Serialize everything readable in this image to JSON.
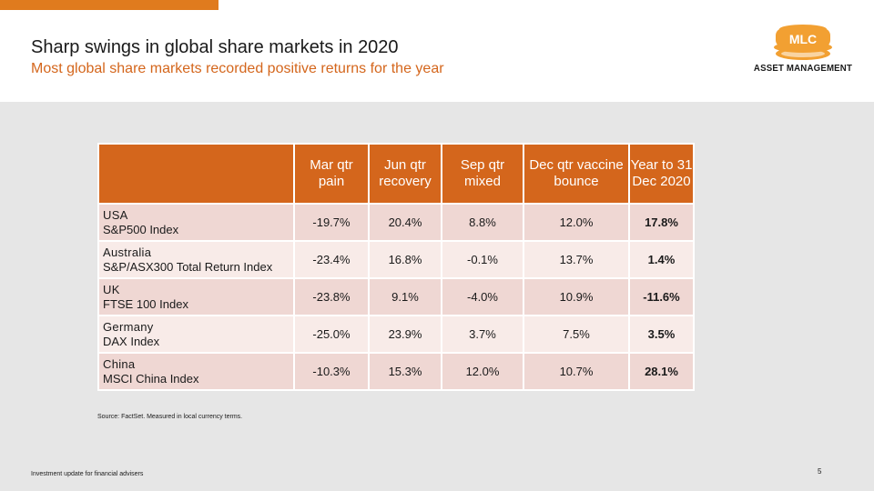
{
  "header": {
    "title": "Sharp swings in global share markets in 2020",
    "subtitle": "Most global share markets recorded positive returns for the year"
  },
  "logo": {
    "badge_text": "MLC",
    "caption": "ASSET MANAGEMENT",
    "color": "#f2a032"
  },
  "colors": {
    "accent": "#e07b1e",
    "header_orange": "#d4661c",
    "row_dark": "#efd7d3",
    "row_light": "#f8ebe8",
    "panel_grey": "#e6e6e6"
  },
  "table": {
    "columns": [
      "Mar qtr pain",
      "Jun qtr recovery",
      "Sep qtr mixed",
      "Dec qtr vaccine bounce",
      "Year to 31 Dec 2020"
    ],
    "rows": [
      {
        "country": "USA",
        "index": "S&P500 Index",
        "mar": "-19.7%",
        "jun": "20.4%",
        "sep": "8.8%",
        "dec": "12.0%",
        "year": "17.8%"
      },
      {
        "country": "Australia",
        "index": "S&P/ASX300 Total Return Index",
        "mar": "-23.4%",
        "jun": "16.8%",
        "sep": "-0.1%",
        "dec": "13.7%",
        "year": "1.4%"
      },
      {
        "country": "UK",
        "index": "FTSE 100 Index",
        "mar": "-23.8%",
        "jun": "9.1%",
        "sep": "-4.0%",
        "dec": "10.9%",
        "year": "-11.6%"
      },
      {
        "country": "Germany",
        "index": "DAX Index",
        "mar": "-25.0%",
        "jun": "23.9%",
        "sep": "3.7%",
        "dec": "7.5%",
        "year": "3.5%"
      },
      {
        "country": "China",
        "index": "MSCI China Index",
        "mar": "-10.3%",
        "jun": "15.3%",
        "sep": "12.0%",
        "dec": "10.7%",
        "year": "28.1%"
      }
    ]
  },
  "source": "Source: FactSet. Measured in local currency terms.",
  "footer": {
    "left": "Investment update for financial advisers",
    "page_number": "5"
  }
}
